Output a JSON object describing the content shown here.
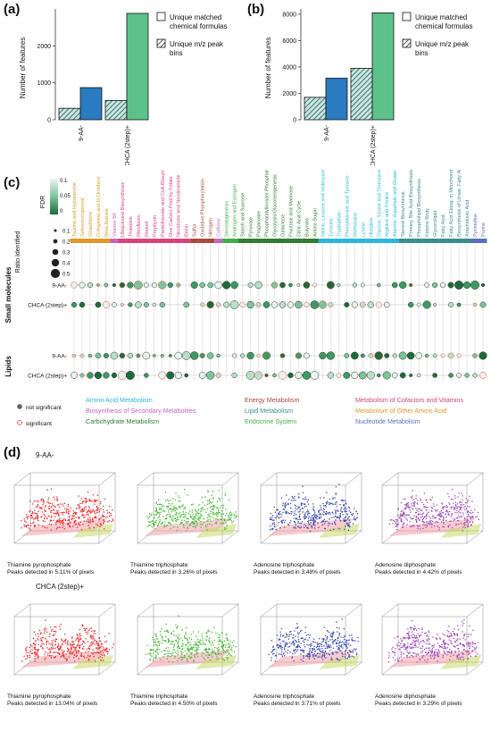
{
  "panels": {
    "a": {
      "letter": "(a)",
      "ylabel": "Number of features",
      "yticks": [
        "0",
        "1000",
        "2000"
      ],
      "categories": [
        "9-AA-",
        "CHCA (2step)+"
      ],
      "legend": [
        "Unique matched chemical formulas",
        "Unique m/z peak bins"
      ]
    },
    "b": {
      "letter": "(b)",
      "ylabel": "Number of features",
      "yticks": [
        "0",
        "2000",
        "4000",
        "6000",
        "8000"
      ],
      "categories": [
        "9-AA-",
        "CHCA (2step)+"
      ],
      "legend": [
        "Unique matched chemical formulas",
        "Unique m/z peak bins"
      ]
    },
    "c": {
      "letter": "(c)",
      "fdr_label": "FDR",
      "fdr_ticks": [
        "0.1",
        "0.05",
        "0"
      ],
      "ratio_label": "Ratio Identified",
      "ratio_ticks": [
        "0.1",
        "0.2",
        "0.3",
        "0.4",
        "0.5"
      ],
      "rows": [
        "9-AA-",
        "CHCA (2step)+",
        "9-AA-",
        "CHCA (2step)+"
      ],
      "groups": [
        "Small molecules",
        "Lipids"
      ],
      "sig_legend": [
        "not significant",
        "significant"
      ],
      "category_legend": [
        {
          "label": "Amino Acid Metabolism",
          "color": "#2ab7d8"
        },
        {
          "label": "Energy Metabolism",
          "color": "#a84a3a"
        },
        {
          "label": "Metabolism of Cofactors and Vitamins",
          "color": "#d8427a"
        },
        {
          "label": "Biosynthesis of Secondary Metabolites",
          "color": "#c466c0"
        },
        {
          "label": "Lipid Metabolism",
          "color": "#3b8c8c"
        },
        {
          "label": "Metabolism of Other Amino Acid",
          "color": "#e2972a"
        },
        {
          "label": "Carbohydrate Metabolism",
          "color": "#2e7d32"
        },
        {
          "label": "Endocrine System",
          "color": "#3fae4a"
        },
        {
          "label": "Nucleotide Metabolism",
          "color": "#5a6fc0"
        }
      ],
      "pathways": [
        {
          "name": "Taurine and Hypotaurine",
          "color": "#e2972a"
        },
        {
          "name": "Selenocompound",
          "color": "#e2972a"
        },
        {
          "name": "Glutathione",
          "color": "#e2972a"
        },
        {
          "name": "D-Arginine and D-Ornithine",
          "color": "#e2972a"
        },
        {
          "name": "Beta-Alanine",
          "color": "#e2972a"
        },
        {
          "name": "Vitamin B6",
          "color": "#c466c0"
        },
        {
          "name": "Ubiquinone Biosynthesis",
          "color": "#d8427a"
        },
        {
          "name": "Thiamine",
          "color": "#d8427a"
        },
        {
          "name": "Riboflavin",
          "color": "#d8427a"
        },
        {
          "name": "Retinol",
          "color": "#d8427a"
        },
        {
          "name": "Porphyrin",
          "color": "#d8427a"
        },
        {
          "name": "Pantothenate and CoA Biosynthesis",
          "color": "#d8427a"
        },
        {
          "name": "One Carbon Pool by Folate",
          "color": "#d8427a"
        },
        {
          "name": "Nicotinate and Nicotinamide",
          "color": "#d8427a"
        },
        {
          "name": "Biotin",
          "color": "#d8427a"
        },
        {
          "name": "Sulfur",
          "color": "#a84a3a"
        },
        {
          "name": "Oxidative Phosphorylation",
          "color": "#a84a3a"
        },
        {
          "name": "Nitrogen",
          "color": "#a84a3a"
        },
        {
          "name": "Caffeine",
          "color": "#c466c0"
        },
        {
          "name": "Steroidogenesis",
          "color": "#3fae4a"
        },
        {
          "name": "Androgen and Estrogen",
          "color": "#3fae4a"
        },
        {
          "name": "Starch and Sucrose",
          "color": "#2e7d32"
        },
        {
          "name": "Pyruvate",
          "color": "#2e7d32"
        },
        {
          "name": "Propanoate",
          "color": "#2e7d32"
        },
        {
          "name": "Phosphatidylinositol Phosphate",
          "color": "#2e7d32"
        },
        {
          "name": "Glycolysis/Gluconeogenesis",
          "color": "#2e7d32"
        },
        {
          "name": "Galactose",
          "color": "#2e7d32"
        },
        {
          "name": "Fructose and Mannose",
          "color": "#2e7d32"
        },
        {
          "name": "Citric Acid Cycle",
          "color": "#2e7d32"
        },
        {
          "name": "Butyrate",
          "color": "#2e7d32"
        },
        {
          "name": "Amino Sugar",
          "color": "#2e7d32"
        },
        {
          "name": "Valine, Leucine and Isoleucine Degrad.",
          "color": "#2ab7d8"
        },
        {
          "name": "Tyrosine",
          "color": "#2ab7d8"
        },
        {
          "name": "Tryptophan",
          "color": "#2ab7d8"
        },
        {
          "name": "Phenylalanine and Tyrosine",
          "color": "#2ab7d8"
        },
        {
          "name": "Methionine",
          "color": "#2ab7d8"
        },
        {
          "name": "Lysine",
          "color": "#2ab7d8"
        },
        {
          "name": "Histidine",
          "color": "#2ab7d8"
        },
        {
          "name": "Glycine, Serine and Threonine",
          "color": "#2ab7d8"
        },
        {
          "name": "Arginine and Proline",
          "color": "#2ab7d8"
        },
        {
          "name": "Alanine, Aspartate and Glutamate",
          "color": "#2ab7d8"
        },
        {
          "name": "Steroid Biosynthesis",
          "color": "#3b8c8c"
        },
        {
          "name": "Primary Bile Acid Biosynthesis",
          "color": "#3b8c8c"
        },
        {
          "name": "Phospholipid Biosynthesis",
          "color": "#3b8c8c"
        },
        {
          "name": "Ketone Body",
          "color": "#3b8c8c"
        },
        {
          "name": "Glycerolipid",
          "color": "#3b8c8c"
        },
        {
          "name": "Fatty Acid",
          "color": "#3b8c8c"
        },
        {
          "name": "Fatty Acid Elong. in Mitochondria",
          "color": "#3b8c8c"
        },
        {
          "name": "Biosynthesis of Unsat. Fatty Acids",
          "color": "#3b8c8c"
        },
        {
          "name": "Arachidonic Acid",
          "color": "#3b8c8c"
        },
        {
          "name": "Pyrimidine",
          "color": "#5a6fc0"
        },
        {
          "name": "Purine",
          "color": "#5a6fc0"
        }
      ]
    },
    "d": {
      "letter": "(d)",
      "sections": [
        {
          "title": "9-AA-",
          "plots": [
            {
              "name": "Thiamine pyrophosphate",
              "detail": "Peaks detected in 5.11% of pixels",
              "color": "#e8282a",
              "fraction": 0.0511
            },
            {
              "name": "Thiamine triphosphate",
              "detail": "Peaks detected in 3.26% of pixels",
              "color": "#4ab83a",
              "fraction": 0.0326
            },
            {
              "name": "Adenosine triphosphate",
              "detail": "Peaks detected in 3.48% of pixels",
              "color": "#3a48b0",
              "fraction": 0.0348
            },
            {
              "name": "Adenosine diphosphate",
              "detail": "Peaks detected in 4.42% of pixels",
              "color": "#9a4ab8",
              "fraction": 0.0442
            }
          ]
        },
        {
          "title": "CHCA (2step)+",
          "plots": [
            {
              "name": "Thiamine pyrophosphate",
              "detail": "Peaks detected in 13.04% of pixels",
              "color": "#e8282a",
              "fraction": 0.1304
            },
            {
              "name": "Thiamine triphosphate",
              "detail": "Peaks detected in 4.50% of pixels",
              "color": "#4ab83a",
              "fraction": 0.045
            },
            {
              "name": "Adenosine triphosphate",
              "detail": "Peaks detected in 3.71% of pixels",
              "color": "#3a48b0",
              "fraction": 0.0371
            },
            {
              "name": "Adenosine diphosphate",
              "detail": "Peaks detected in 3.29% of pixels",
              "color": "#9a4ab8",
              "fraction": 0.0329
            }
          ]
        }
      ]
    }
  },
  "chart_data": [
    {
      "type": "bar",
      "categories": [
        "9-AA-",
        "CHCA (2step)+"
      ],
      "series": [
        {
          "name": "Unique m/z peak bins",
          "values": [
            310,
            520
          ],
          "color": "#3b8c88",
          "hatched": true
        },
        {
          "name": "Unique matched chemical formulas",
          "values": [
            870,
            2880
          ],
          "color_by_category": [
            "#2a7bbf",
            "#5cc28a"
          ]
        }
      ],
      "ylabel": "Number of features",
      "ylim": [
        0,
        3000
      ]
    },
    {
      "type": "bar",
      "categories": [
        "9-AA-",
        "CHCA (2step)+"
      ],
      "series": [
        {
          "name": "Unique m/z peak bins",
          "values": [
            1700,
            3900
          ],
          "color": "#3b8c88",
          "hatched": true
        },
        {
          "name": "Unique matched chemical formulas",
          "values": [
            3150,
            8100
          ],
          "color_by_category": [
            "#2a7bbf",
            "#5cc28a"
          ]
        }
      ],
      "ylabel": "Number of features",
      "ylim": [
        0,
        8400
      ]
    }
  ]
}
